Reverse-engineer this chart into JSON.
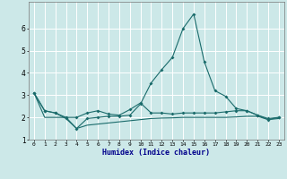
{
  "xlabel": "Humidex (Indice chaleur)",
  "x": [
    0,
    1,
    2,
    3,
    4,
    5,
    6,
    7,
    8,
    9,
    10,
    11,
    12,
    13,
    14,
    15,
    16,
    17,
    18,
    19,
    20,
    21,
    22,
    23
  ],
  "line1": [
    3.1,
    2.3,
    2.2,
    2.0,
    2.0,
    2.2,
    2.3,
    2.15,
    2.1,
    2.35,
    2.65,
    2.2,
    2.2,
    2.15,
    2.2,
    2.2,
    2.2,
    2.2,
    2.25,
    2.3,
    2.3,
    2.1,
    1.95,
    2.0
  ],
  "line2": [
    3.1,
    2.3,
    2.2,
    1.95,
    1.5,
    1.95,
    2.0,
    2.05,
    2.05,
    2.1,
    2.6,
    3.55,
    4.15,
    4.7,
    6.0,
    6.65,
    4.5,
    3.2,
    2.95,
    2.4,
    2.3,
    2.1,
    1.9,
    2.0
  ],
  "line3": [
    3.1,
    2.0,
    2.0,
    2.0,
    1.5,
    1.65,
    1.7,
    1.75,
    1.8,
    1.85,
    1.9,
    1.95,
    1.97,
    1.98,
    2.0,
    2.0,
    2.0,
    2.0,
    2.0,
    2.02,
    2.05,
    2.05,
    1.9,
    1.95
  ],
  "line_color": "#1a6b6b",
  "bg_color": "#cce8e8",
  "grid_color": "#ffffff",
  "ylim": [
    1,
    7.2
  ],
  "yticks": [
    1,
    2,
    3,
    4,
    5,
    6
  ],
  "xlim": [
    -0.5,
    23.5
  ]
}
